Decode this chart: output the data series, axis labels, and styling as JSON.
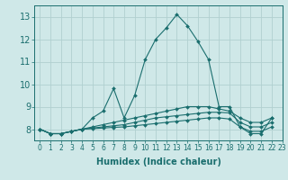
{
  "title": "",
  "xlabel": "Humidex (Indice chaleur)",
  "ylabel": "",
  "xlim": [
    -0.5,
    23
  ],
  "ylim": [
    7.5,
    13.5
  ],
  "yticks": [
    8,
    9,
    10,
    11,
    12,
    13
  ],
  "xticks": [
    0,
    1,
    2,
    3,
    4,
    5,
    6,
    7,
    8,
    9,
    10,
    11,
    12,
    13,
    14,
    15,
    16,
    17,
    18,
    19,
    20,
    21,
    22,
    23
  ],
  "bg_color": "#cfe8e8",
  "grid_color": "#b0d0d0",
  "line_color": "#1a6e6e",
  "series": [
    [
      8.0,
      7.8,
      7.8,
      7.9,
      8.0,
      8.5,
      8.8,
      9.8,
      8.5,
      9.5,
      11.1,
      12.0,
      12.5,
      13.1,
      12.6,
      11.9,
      11.1,
      9.0,
      9.0,
      8.1,
      7.8,
      7.8,
      8.5
    ],
    [
      8.0,
      7.8,
      7.8,
      7.9,
      8.0,
      8.1,
      8.2,
      8.3,
      8.4,
      8.5,
      8.6,
      8.7,
      8.8,
      8.9,
      9.0,
      9.0,
      9.0,
      8.9,
      8.8,
      8.5,
      8.3,
      8.3,
      8.5
    ],
    [
      8.0,
      7.8,
      7.8,
      7.9,
      8.0,
      8.05,
      8.1,
      8.15,
      8.2,
      8.3,
      8.4,
      8.5,
      8.55,
      8.6,
      8.65,
      8.7,
      8.75,
      8.75,
      8.72,
      8.3,
      8.1,
      8.1,
      8.3
    ],
    [
      8.0,
      7.8,
      7.8,
      7.9,
      8.0,
      8.02,
      8.05,
      8.08,
      8.1,
      8.15,
      8.2,
      8.25,
      8.3,
      8.35,
      8.4,
      8.45,
      8.5,
      8.5,
      8.45,
      8.1,
      7.9,
      7.9,
      8.1
    ]
  ],
  "font_size_xlabel": 7,
  "font_size_ytick": 7,
  "font_size_xtick": 5.5
}
